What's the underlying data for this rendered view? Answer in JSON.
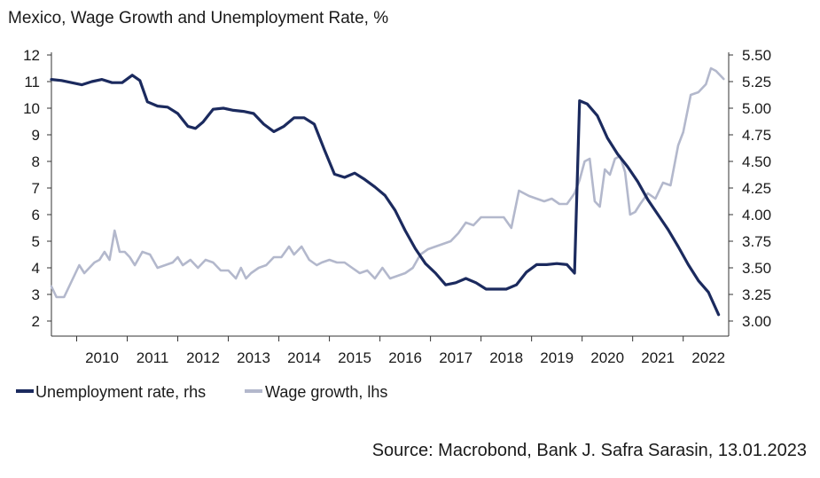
{
  "chart_data": {
    "type": "line",
    "title": "Mexico, Wage Growth and Unemployment Rate, %",
    "source": "Source: Macrobond, Bank J. Safra Sarasin, 13.01.2023",
    "x_ticks": [
      "2010",
      "2011",
      "2012",
      "2013",
      "2014",
      "2015",
      "2016",
      "2017",
      "2018",
      "2019",
      "2020",
      "2021",
      "2022"
    ],
    "xlim": [
      2009.5,
      2022.9
    ],
    "left_axis": {
      "ylim": [
        2,
        12
      ],
      "ticks": [
        "2",
        "3",
        "4",
        "5",
        "6",
        "7",
        "8",
        "9",
        "10",
        "11",
        "12"
      ]
    },
    "right_axis": {
      "ylim": [
        3.0,
        5.5
      ],
      "ticks": [
        "3.00",
        "3.25",
        "3.50",
        "3.75",
        "4.00",
        "4.25",
        "4.50",
        "4.75",
        "5.00",
        "5.25",
        "5.50"
      ]
    },
    "legend": [
      "Unemployment rate, rhs",
      "Wage growth, lhs"
    ],
    "colors": {
      "unemployment": "#1b2a5e",
      "wage": "#b3b8cc",
      "axis": "#333333"
    },
    "series": [
      {
        "name": "Unemployment rate, rhs",
        "axis": "right",
        "x": [
          2009.5,
          2009.7,
          2009.9,
          2010.1,
          2010.3,
          2010.5,
          2010.7,
          2010.9,
          2011.1,
          2011.25,
          2011.4,
          2011.6,
          2011.8,
          2012.0,
          2012.2,
          2012.35,
          2012.5,
          2012.7,
          2012.9,
          2013.1,
          2013.3,
          2013.5,
          2013.7,
          2013.9,
          2014.1,
          2014.3,
          2014.5,
          2014.7,
          2014.9,
          2015.1,
          2015.3,
          2015.5,
          2015.7,
          2015.9,
          2016.1,
          2016.3,
          2016.5,
          2016.7,
          2016.9,
          2017.1,
          2017.3,
          2017.5,
          2017.7,
          2017.9,
          2018.1,
          2018.3,
          2018.5,
          2018.7,
          2018.9,
          2019.1,
          2019.3,
          2019.5,
          2019.7,
          2019.85,
          2019.95,
          2020.1,
          2020.3,
          2020.5,
          2020.7,
          2020.9,
          2021.1,
          2021.3,
          2021.5,
          2021.7,
          2021.9,
          2022.1,
          2022.3,
          2022.5,
          2022.7
        ],
        "values": [
          5.27,
          5.26,
          5.24,
          5.22,
          5.25,
          5.27,
          5.24,
          5.24,
          5.31,
          5.26,
          5.06,
          5.02,
          5.01,
          4.95,
          4.83,
          4.81,
          4.87,
          4.99,
          5.0,
          4.98,
          4.97,
          4.95,
          4.85,
          4.78,
          4.83,
          4.91,
          4.91,
          4.85,
          4.61,
          4.38,
          4.35,
          4.39,
          4.33,
          4.26,
          4.18,
          4.04,
          3.85,
          3.68,
          3.54,
          3.45,
          3.34,
          3.36,
          3.4,
          3.36,
          3.3,
          3.3,
          3.3,
          3.34,
          3.46,
          3.53,
          3.53,
          3.54,
          3.53,
          3.45,
          5.07,
          5.04,
          4.93,
          4.72,
          4.57,
          4.45,
          4.31,
          4.14,
          4.0,
          3.86,
          3.7,
          3.53,
          3.38,
          3.27,
          3.06
        ]
      },
      {
        "name": "Wage growth, lhs",
        "axis": "left",
        "x": [
          2009.5,
          2009.6,
          2009.75,
          2009.85,
          2009.95,
          2010.05,
          2010.15,
          2010.25,
          2010.35,
          2010.45,
          2010.55,
          2010.65,
          2010.75,
          2010.85,
          2010.95,
          2011.05,
          2011.15,
          2011.3,
          2011.45,
          2011.6,
          2011.75,
          2011.9,
          2012.0,
          2012.1,
          2012.25,
          2012.4,
          2012.55,
          2012.7,
          2012.85,
          2013.0,
          2013.15,
          2013.25,
          2013.35,
          2013.45,
          2013.6,
          2013.75,
          2013.9,
          2014.05,
          2014.2,
          2014.3,
          2014.45,
          2014.6,
          2014.75,
          2014.85,
          2015.0,
          2015.15,
          2015.3,
          2015.45,
          2015.6,
          2015.75,
          2015.9,
          2016.05,
          2016.2,
          2016.35,
          2016.5,
          2016.65,
          2016.8,
          2016.95,
          2017.1,
          2017.25,
          2017.4,
          2017.55,
          2017.7,
          2017.85,
          2018.0,
          2018.15,
          2018.3,
          2018.45,
          2018.6,
          2018.75,
          2018.85,
          2018.95,
          2019.1,
          2019.25,
          2019.4,
          2019.55,
          2019.7,
          2019.85,
          2019.95,
          2020.05,
          2020.15,
          2020.25,
          2020.35,
          2020.45,
          2020.55,
          2020.65,
          2020.75,
          2020.85,
          2020.95,
          2021.05,
          2021.15,
          2021.3,
          2021.45,
          2021.6,
          2021.75,
          2021.9,
          2022.0,
          2022.15,
          2022.3,
          2022.45,
          2022.55,
          2022.65,
          2022.8
        ],
        "values": [
          3.3,
          2.9,
          2.9,
          3.3,
          3.7,
          4.1,
          3.8,
          4.0,
          4.2,
          4.3,
          4.6,
          4.3,
          5.4,
          4.6,
          4.6,
          4.4,
          4.1,
          4.6,
          4.5,
          4.0,
          4.1,
          4.2,
          4.4,
          4.1,
          4.3,
          4.0,
          4.3,
          4.2,
          3.9,
          3.9,
          3.6,
          4.0,
          3.6,
          3.8,
          4.0,
          4.1,
          4.4,
          4.4,
          4.8,
          4.5,
          4.8,
          4.3,
          4.1,
          4.2,
          4.3,
          4.2,
          4.2,
          4.0,
          3.8,
          3.9,
          3.6,
          4.0,
          3.6,
          3.7,
          3.8,
          4.0,
          4.5,
          4.7,
          4.8,
          4.9,
          5.0,
          5.3,
          5.7,
          5.6,
          5.9,
          5.9,
          5.9,
          5.9,
          5.5,
          6.9,
          6.8,
          6.7,
          6.6,
          6.5,
          6.6,
          6.4,
          6.4,
          6.8,
          7.3,
          8.0,
          8.1,
          6.5,
          6.3,
          7.7,
          7.5,
          8.1,
          8.2,
          7.6,
          6.0,
          6.1,
          6.4,
          6.8,
          6.6,
          7.2,
          7.1,
          8.6,
          9.1,
          10.5,
          10.6,
          10.9,
          11.5,
          11.4,
          11.1
        ]
      }
    ]
  }
}
